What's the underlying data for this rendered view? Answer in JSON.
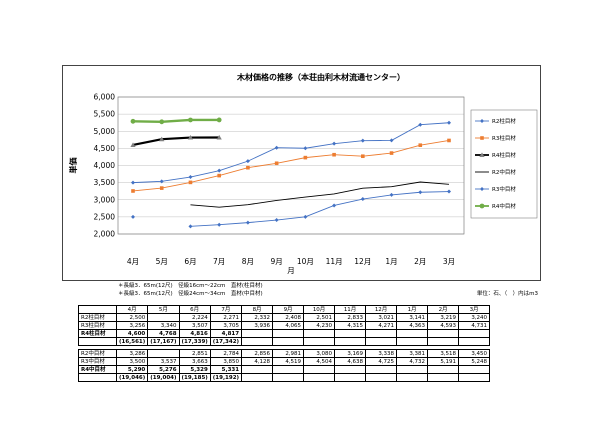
{
  "chart_data": {
    "type": "line",
    "title": "木材価格の推移（本荘由利木材流通センター）",
    "ylabel": "単価",
    "xlabel": "月",
    "categories": [
      "4月",
      "5月",
      "6月",
      "7月",
      "8月",
      "9月",
      "10月",
      "11月",
      "12月",
      "1月",
      "2月",
      "3月"
    ],
    "yticks": [
      "2,000",
      "2,500",
      "3,000",
      "3,500",
      "4,000",
      "4,500",
      "5,000",
      "5,500",
      "6,000"
    ],
    "ylim": [
      2000,
      6000
    ],
    "grid": true,
    "legend_position": "right",
    "series": [
      {
        "name": "R2柱目材",
        "color": "#4472C4",
        "marker": "diamond",
        "values": [
          2500,
          null,
          2224,
          2271,
          2332,
          2408,
          2501,
          2833,
          3021,
          3141,
          3219,
          3240
        ]
      },
      {
        "name": "R3柱目材",
        "color": "#ED7D31",
        "marker": "square",
        "values": [
          3256,
          3340,
          3507,
          3705,
          3936,
          4065,
          4230,
          4315,
          4271,
          4363,
          4593,
          4731
        ]
      },
      {
        "name": "R4柱目材",
        "color": "#000000",
        "marker": "triangle",
        "width": 2.2,
        "values": [
          4600,
          4768,
          4816,
          4817,
          null,
          null,
          null,
          null,
          null,
          null,
          null,
          null
        ]
      },
      {
        "name": "R2中目材",
        "color": "#000000",
        "marker": "none",
        "values": [
          null,
          null,
          2851,
          2784,
          2856,
          2981,
          3080,
          3169,
          3338,
          3381,
          3518,
          3450
        ]
      },
      {
        "name": "R3中目材",
        "color": "#4472C4",
        "marker": "diamond",
        "values": [
          3500,
          3537,
          3663,
          3850,
          4128,
          4519,
          4504,
          4638,
          4725,
          4732,
          5191,
          5248
        ]
      },
      {
        "name": "R4中目材",
        "color": "#70AD47",
        "marker": "circle",
        "width": 2.4,
        "values": [
          5290,
          5276,
          5329,
          5331,
          null,
          null,
          null,
          null,
          null,
          null,
          null,
          null
        ]
      }
    ]
  },
  "notes": {
    "line1": "＊長級3．65m(12尺)　径級16cm～22cm　直材(柱目材)",
    "line2": "＊長級3．65m(12尺)　径級24cm～34cm　直材(中目材)",
    "unit": "単位：石、（　）内はm3"
  },
  "table": {
    "months": [
      "4月",
      "5月",
      "6月",
      "7月",
      "8月",
      "9月",
      "10月",
      "11月",
      "12月",
      "1月",
      "2月",
      "3月"
    ],
    "block1": [
      {
        "label": "R2柱目材",
        "bold": false,
        "cells": [
          "2,500",
          "",
          "2,224",
          "2,271",
          "2,332",
          "2,408",
          "2,501",
          "2,833",
          "3,021",
          "3,141",
          "3,219",
          "3,240"
        ]
      },
      {
        "label": "R3柱目材",
        "bold": false,
        "cells": [
          "3,256",
          "3,340",
          "3,507",
          "3,705",
          "3,936",
          "4,065",
          "4,230",
          "4,315",
          "4,271",
          "4,363",
          "4,593",
          "4,731"
        ]
      },
      {
        "label": "R4柱目材",
        "bold": true,
        "cells": [
          "4,600",
          "4,768",
          "4,816",
          "4,817",
          "",
          "",
          "",
          "",
          "",
          "",
          "",
          ""
        ]
      },
      {
        "label": "",
        "bold": true,
        "cells": [
          "(16,561)",
          "(17,167)",
          "(17,339)",
          "(17,342)",
          "",
          "",
          "",
          "",
          "",
          "",
          "",
          ""
        ]
      }
    ],
    "block2": [
      {
        "label": "R2中目材",
        "bold": false,
        "cells": [
          "3,286",
          "",
          "2,851",
          "2,784",
          "2,856",
          "2,981",
          "3,080",
          "3,169",
          "3,338",
          "3,381",
          "3,518",
          "3,450"
        ]
      },
      {
        "label": "R3中目材",
        "bold": false,
        "cells": [
          "3,500",
          "3,537",
          "3,663",
          "3,850",
          "4,128",
          "4,519",
          "4,504",
          "4,638",
          "4,725",
          "4,732",
          "5,191",
          "5,248"
        ]
      },
      {
        "label": "R4中目材",
        "bold": true,
        "cells": [
          "5,290",
          "5,276",
          "5,329",
          "5,331",
          "",
          "",
          "",
          "",
          "",
          "",
          "",
          ""
        ]
      },
      {
        "label": "",
        "bold": true,
        "cells": [
          "(19,046)",
          "(19,004)",
          "(19,185)",
          "(19,192)",
          "",
          "",
          "",
          "",
          "",
          "",
          "",
          ""
        ]
      }
    ]
  }
}
